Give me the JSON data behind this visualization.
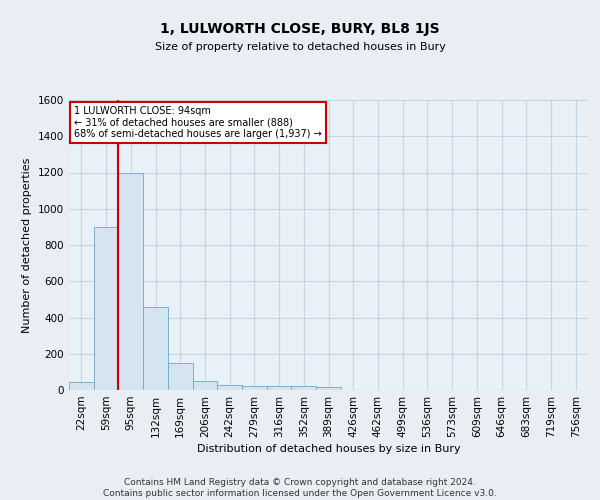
{
  "title": "1, LULWORTH CLOSE, BURY, BL8 1JS",
  "subtitle": "Size of property relative to detached houses in Bury",
  "xlabel": "Distribution of detached houses by size in Bury",
  "ylabel": "Number of detached properties",
  "footer_line1": "Contains HM Land Registry data © Crown copyright and database right 2024.",
  "footer_line2": "Contains public sector information licensed under the Open Government Licence v3.0.",
  "bar_labels": [
    "22sqm",
    "59sqm",
    "95sqm",
    "132sqm",
    "169sqm",
    "206sqm",
    "242sqm",
    "279sqm",
    "316sqm",
    "352sqm",
    "389sqm",
    "426sqm",
    "462sqm",
    "499sqm",
    "536sqm",
    "573sqm",
    "609sqm",
    "646sqm",
    "683sqm",
    "719sqm",
    "756sqm"
  ],
  "bar_values": [
    45,
    900,
    1200,
    460,
    150,
    50,
    30,
    20,
    20,
    20,
    15,
    0,
    0,
    0,
    0,
    0,
    0,
    0,
    0,
    0,
    0
  ],
  "bar_color": "#d4e4f0",
  "bar_edge_color": "#6fa8c8",
  "annotation_line1": "1 LULWORTH CLOSE: 94sqm",
  "annotation_line2": "← 31% of detached houses are smaller (888)",
  "annotation_line3": "68% of semi-detached houses are larger (1,937) →",
  "vline_x_index": 2,
  "vline_color": "#cc0000",
  "ylim": [
    0,
    1600
  ],
  "yticks": [
    0,
    200,
    400,
    600,
    800,
    1000,
    1200,
    1400,
    1600
  ],
  "annotation_box_facecolor": "#ffffff",
  "annotation_box_edgecolor": "#cc0000",
  "bg_color": "#e8eef4",
  "plot_bg_color": "#e8f0f8",
  "grid_color": "#c8d4e0",
  "title_fontsize": 10,
  "subtitle_fontsize": 8,
  "axis_label_fontsize": 8,
  "tick_fontsize": 7.5,
  "annotation_fontsize": 7,
  "footer_fontsize": 6.5
}
